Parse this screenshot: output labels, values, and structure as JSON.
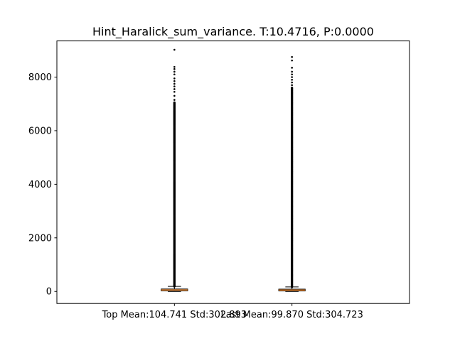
{
  "chart_data": {
    "type": "box",
    "title": "Hint_Haralick_sum_variance. T:10.4716, P:0.0000",
    "xlabel": "",
    "ylabel": "",
    "ylim": [
      -450,
      9350
    ],
    "yticks": [
      0,
      2000,
      4000,
      6000,
      8000
    ],
    "categories": [
      "Top Mean:104.741 Std:302.893",
      "Last Mean:99.870 Std:304.723"
    ],
    "boxes": [
      {
        "category": "Top Mean:104.741 Std:302.893",
        "whisker_low": 0,
        "q1": 20,
        "median": 55,
        "q3": 90,
        "whisker_high": 190,
        "outliers_range": [
          190,
          7050
        ],
        "outliers_extra": [
          7150,
          7300,
          7450,
          7550,
          7650,
          7750,
          7850,
          7950,
          8100,
          8200,
          8300,
          8380,
          9020
        ]
      },
      {
        "category": "Last Mean:99.870 Std:304.723",
        "whisker_low": 0,
        "q1": 18,
        "median": 52,
        "q3": 85,
        "whisker_high": 170,
        "outliers_range": [
          170,
          7600
        ],
        "outliers_extra": [
          7700,
          7800,
          7900,
          8000,
          8100,
          8200,
          8350,
          8620,
          8750
        ]
      }
    ],
    "colors": {
      "median": "#ff7f0e",
      "box": "#000000",
      "flier": "#000000",
      "frame": "#000000"
    }
  }
}
